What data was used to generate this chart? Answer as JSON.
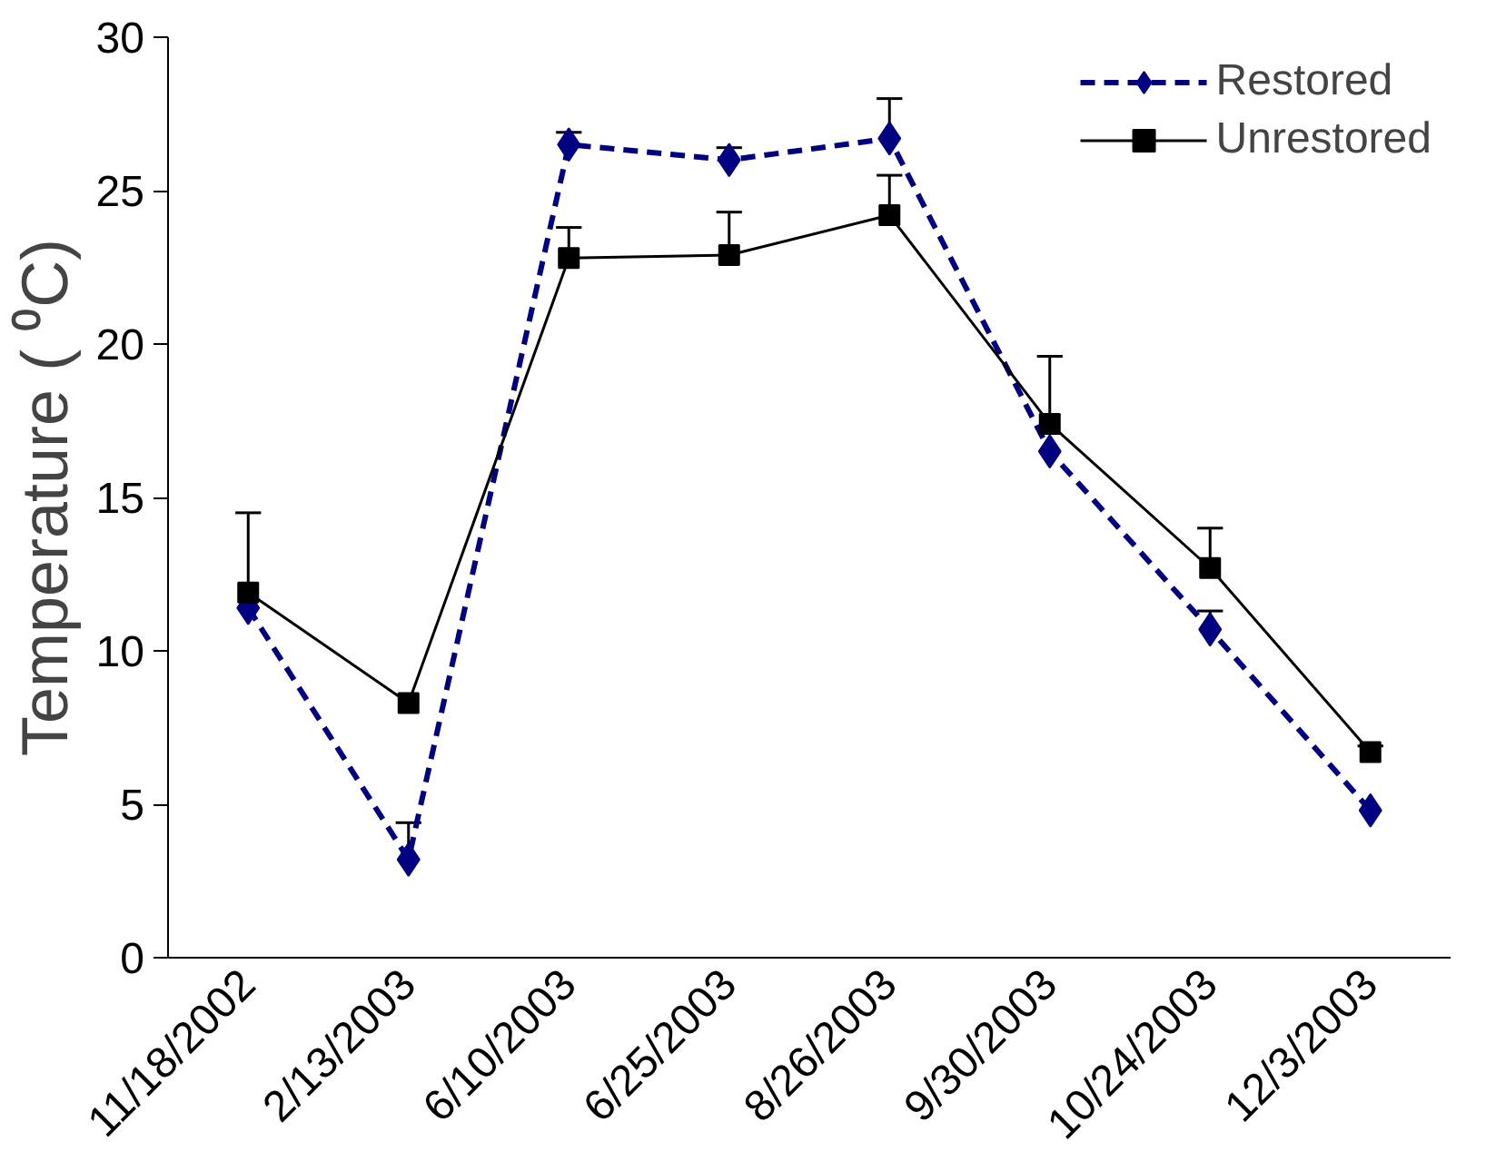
{
  "chart_data": {
    "type": "line",
    "ylabel": "Temperature ( ⁰C)",
    "categories": [
      "11/18/2002",
      "2/13/2003",
      "6/10/2003",
      "6/25/2003",
      "8/26/2003",
      "9/30/2003",
      "10/24/2003",
      "12/3/2003"
    ],
    "series": [
      {
        "name": "Restored",
        "color": "#000080",
        "marker": "diamond",
        "line_style": "dashed",
        "values": [
          11.4,
          3.2,
          26.5,
          26.0,
          26.7,
          16.5,
          10.7,
          4.8
        ],
        "errors": [
          null,
          [
            3.2,
            4.4
          ],
          [
            26.5,
            26.9
          ],
          [
            26.0,
            26.4
          ],
          [
            26.7,
            28.0
          ],
          null,
          [
            10.7,
            11.3
          ],
          null
        ]
      },
      {
        "name": "Unrestored",
        "color": "#000000",
        "marker": "square",
        "line_style": "solid",
        "values": [
          11.9,
          8.3,
          22.8,
          22.9,
          24.2,
          17.4,
          12.7,
          6.7
        ],
        "errors": [
          [
            11.9,
            14.5
          ],
          null,
          [
            22.8,
            23.8
          ],
          [
            22.9,
            24.3
          ],
          [
            24.2,
            25.5
          ],
          [
            17.4,
            19.6
          ],
          [
            12.7,
            14.0
          ],
          [
            6.7,
            6.9
          ]
        ]
      }
    ],
    "ylim": [
      0,
      30
    ],
    "yticks": [
      0,
      5,
      10,
      15,
      20,
      25,
      30
    ],
    "grid": false,
    "legend": "top right"
  }
}
